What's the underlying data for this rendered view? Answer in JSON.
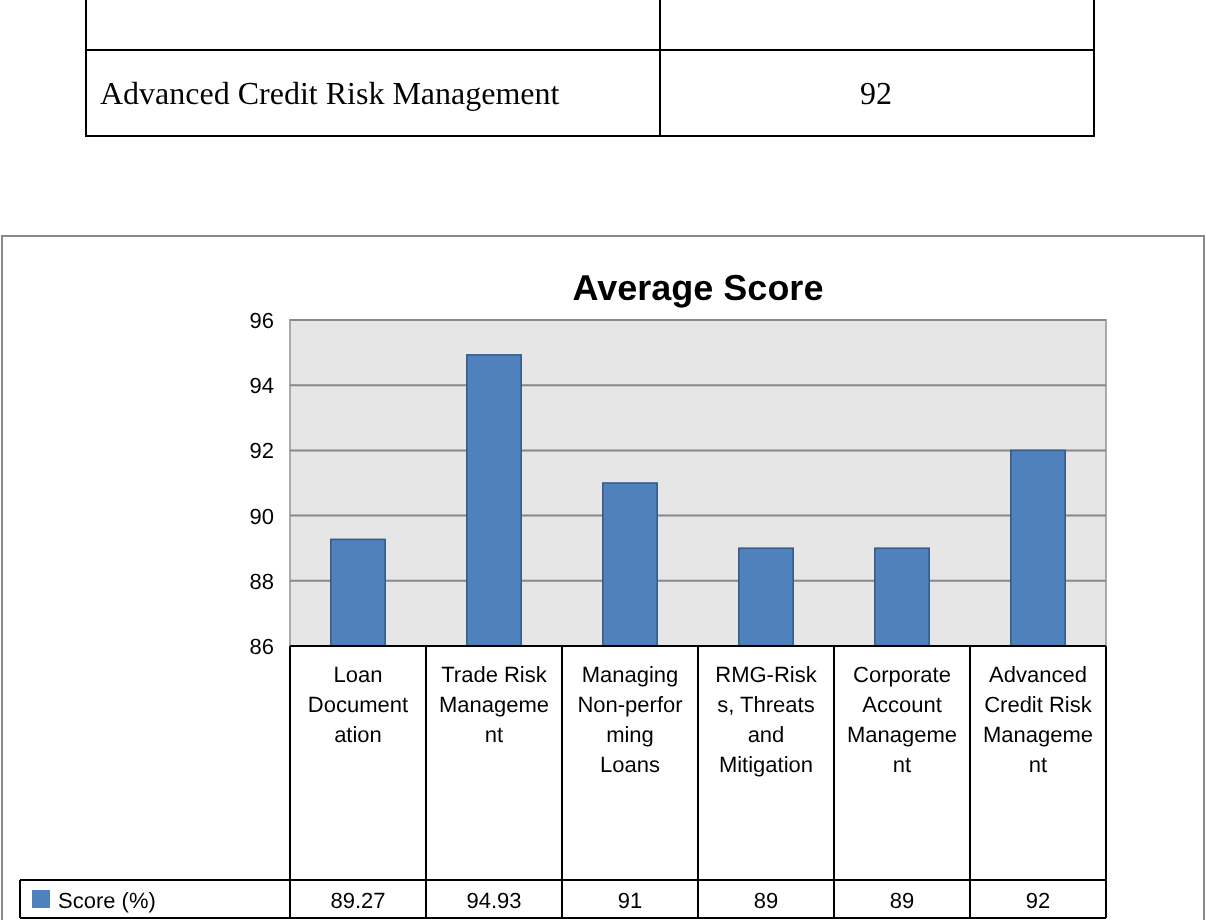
{
  "chart_data": {
    "type": "bar",
    "title": "Average Score",
    "annotations": [
      "Advanced Credit Risk Management",
      "92"
    ],
    "categories": [
      "Loan Documentation",
      "Trade Risk Management",
      "Managing Non-performing Loans",
      "RMG-Risks, Threats and Mitigation",
      "Corporate Account Management",
      "Advanced Credit Risk Management"
    ],
    "series": [
      {
        "name": "Score (%)",
        "color": "#4f81bd",
        "values": [
          89.27,
          94.93,
          91,
          89,
          89,
          92
        ]
      }
    ],
    "ylim": [
      86,
      96
    ],
    "yticks": [
      86,
      88,
      90,
      92,
      94,
      96
    ],
    "grid": "y",
    "legend": "bottom",
    "data_labels": true
  }
}
